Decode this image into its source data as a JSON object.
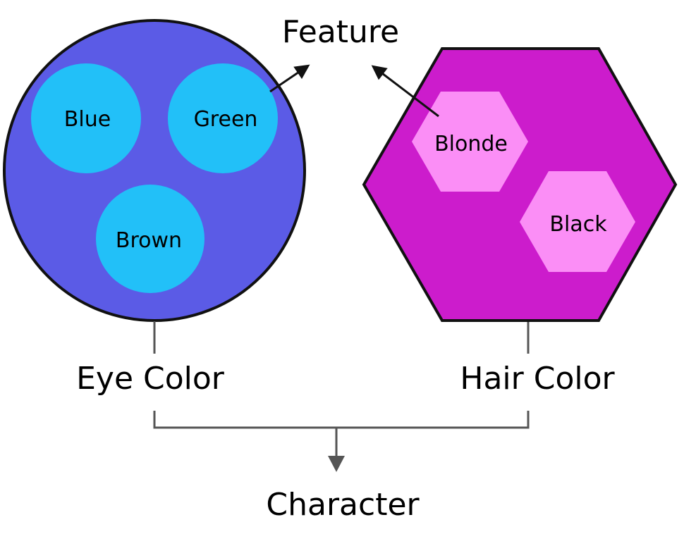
{
  "diagram": {
    "feature_label": "Feature",
    "eye_color_label": "Eye Color",
    "hair_color_label": "Hair Color",
    "character_label": "Character",
    "eye_options": [
      "Blue",
      "Green",
      "Brown"
    ],
    "hair_options": [
      "Blonde",
      "Black"
    ]
  },
  "colors": {
    "eye_group_fill": "#5b5be6",
    "eye_option_fill": "#22c0f8",
    "hair_group_fill": "#cc1ccc",
    "hair_option_fill": "#fb8ef6",
    "outline": "#111111",
    "connector": "#555555"
  }
}
